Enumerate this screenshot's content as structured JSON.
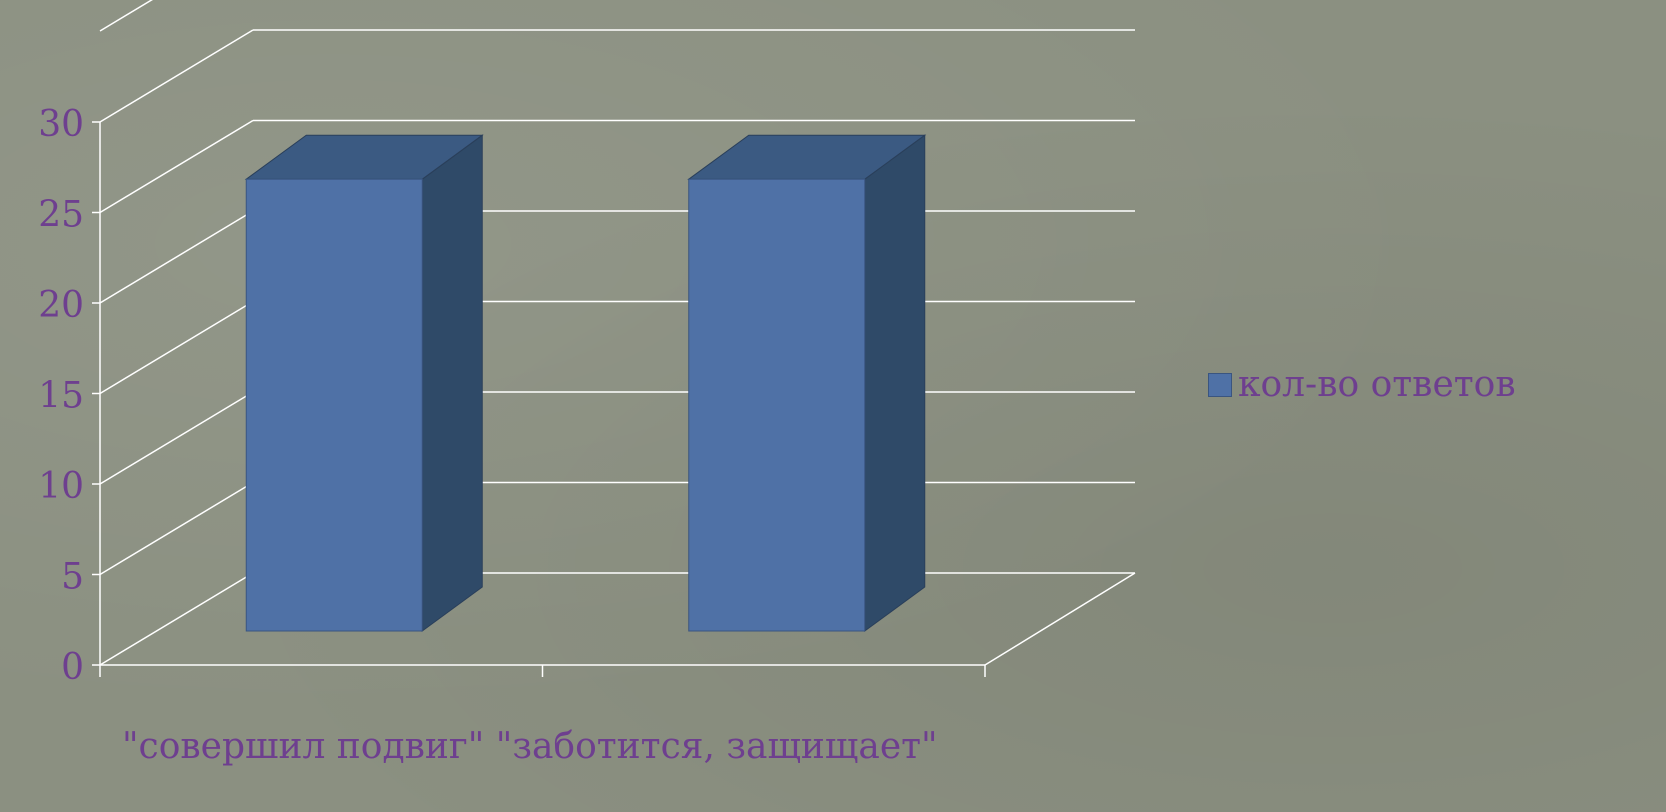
{
  "chart_data": {
    "type": "bar",
    "categories": [
      "\"совершил подвиг\"",
      "\"заботится, защищает\""
    ],
    "series": [
      {
        "name": "кол-во ответов",
        "values": [
          28,
          28
        ]
      }
    ],
    "ylim": [
      0,
      30
    ],
    "yticks": [
      0,
      5,
      10,
      15,
      20,
      25,
      30
    ],
    "grid": true,
    "legend_position": "right",
    "colors": {
      "bar_front": "#4f71a6",
      "bar_side": "#2f4a68",
      "bar_top": "#3b5a82",
      "grid": "#ffffff",
      "tick_text": "#6e3f8f",
      "background": "#8b9081"
    }
  }
}
